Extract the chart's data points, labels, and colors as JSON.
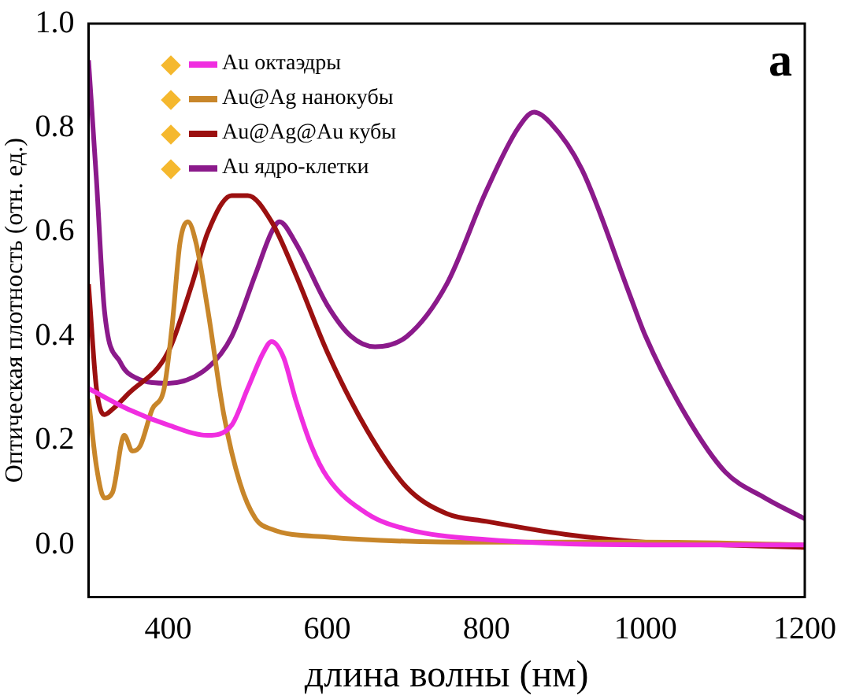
{
  "chart_data": {
    "type": "line",
    "xlabel": "длина волны (нм)",
    "ylabel": "Оптическая плотность (отн. ед.)",
    "xlim": [
      300,
      1200
    ],
    "xticks": [
      400,
      600,
      800,
      1000,
      1200
    ],
    "ylim": [
      -0.1,
      1.0
    ],
    "yticks": [
      {
        "value": 0,
        "label": "0.0"
      },
      0.2,
      0.4,
      0.6,
      0.8,
      {
        "value": 1,
        "label": "1.0"
      }
    ],
    "grid": false,
    "legend": "top left",
    "marker": "none",
    "annotations": [
      "a"
    ],
    "series": [
      {
        "name": "Au октаэдры",
        "color": "#f02ee0",
        "x": [
          300,
          350,
          400,
          450,
          480,
          500,
          520,
          530,
          545,
          560,
          580,
          600,
          650,
          700,
          800,
          1000,
          1200
        ],
        "values": [
          0.3,
          0.26,
          0.23,
          0.21,
          0.23,
          0.3,
          0.37,
          0.39,
          0.36,
          0.28,
          0.19,
          0.13,
          0.06,
          0.03,
          0.01,
          0.0,
          0.0
        ]
      },
      {
        "name": "Au@Ag нанокубы",
        "color": "#c8862a",
        "x": [
          300,
          310,
          320,
          330,
          345,
          355,
          365,
          380,
          395,
          405,
          415,
          425,
          435,
          450,
          470,
          490,
          510,
          530,
          600,
          800,
          1000,
          1200
        ],
        "values": [
          0.28,
          0.15,
          0.09,
          0.1,
          0.21,
          0.18,
          0.19,
          0.26,
          0.3,
          0.42,
          0.58,
          0.62,
          0.58,
          0.45,
          0.25,
          0.12,
          0.05,
          0.03,
          0.015,
          0.005,
          0.005,
          0.0
        ]
      },
      {
        "name": "Au@Ag@Au кубы",
        "color": "#9b1010",
        "x": [
          300,
          310,
          320,
          330,
          350,
          400,
          430,
          450,
          480,
          500,
          530,
          560,
          600,
          650,
          700,
          750,
          800,
          900,
          1000,
          1100,
          1200
        ],
        "values": [
          0.5,
          0.3,
          0.25,
          0.26,
          0.29,
          0.37,
          0.5,
          0.6,
          0.67,
          0.67,
          0.62,
          0.52,
          0.37,
          0.22,
          0.11,
          0.06,
          0.045,
          0.02,
          0.005,
          0.0,
          -0.005
        ]
      },
      {
        "name": "Au ядро-клетки",
        "color": "#8b1a8b",
        "x": [
          300,
          310,
          320,
          340,
          360,
          400,
          450,
          480,
          510,
          530,
          540,
          560,
          600,
          630,
          660,
          700,
          750,
          800,
          840,
          860,
          880,
          920,
          980,
          1000,
          1050,
          1100,
          1150,
          1200
        ],
        "values": [
          0.93,
          0.7,
          0.45,
          0.35,
          0.32,
          0.31,
          0.34,
          0.4,
          0.52,
          0.6,
          0.62,
          0.58,
          0.46,
          0.4,
          0.38,
          0.4,
          0.5,
          0.68,
          0.8,
          0.83,
          0.81,
          0.72,
          0.48,
          0.4,
          0.25,
          0.14,
          0.09,
          0.05
        ]
      }
    ]
  }
}
